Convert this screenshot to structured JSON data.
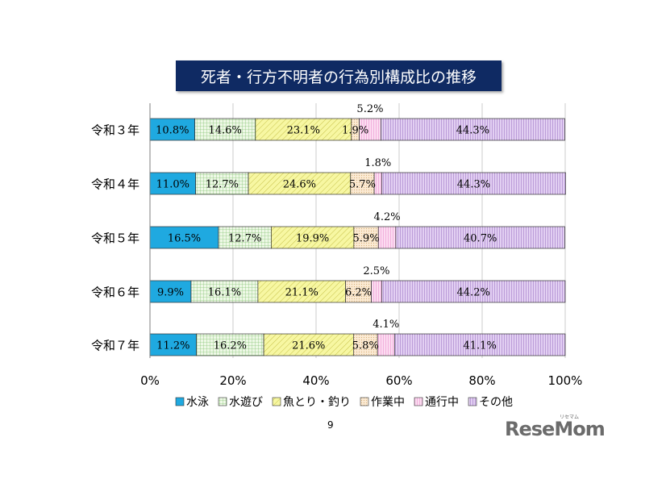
{
  "title": "死者・行方不明者の行為別構成比の推移",
  "page_number": "9",
  "watermark": "ReseMom",
  "watermark_sub": "リセマム",
  "colors": {
    "水泳": "#1fa9e0",
    "水遊び": "#e7f4de",
    "魚とり・釣り": "#f5f59a",
    "作業中": "#fbe8cf",
    "通行中": "#fbd6ef",
    "その他": "#dcc6ee"
  },
  "chart_data": {
    "type": "bar",
    "orientation": "horizontal-stacked-100",
    "title": "死者・行方不明者の行為別構成比の推移",
    "categories": [
      "令和３年",
      "令和４年",
      "令和５年",
      "令和６年",
      "令和７年"
    ],
    "series": [
      {
        "name": "水泳",
        "values": [
          10.8,
          11.0,
          16.5,
          9.9,
          11.2
        ],
        "labels": [
          "10.8%",
          "11.0%",
          "16.5%",
          "9.9%",
          "11.2%"
        ]
      },
      {
        "name": "水遊び",
        "values": [
          14.6,
          12.7,
          12.7,
          16.1,
          16.2
        ],
        "labels": [
          "14.6%",
          "12.7%",
          "12.7%",
          "16.1%",
          "16.2%"
        ]
      },
      {
        "name": "魚とり・釣り",
        "values": [
          23.1,
          24.6,
          19.9,
          21.1,
          21.6
        ],
        "labels": [
          "23.1%",
          "24.6%",
          "19.9%",
          "21.1%",
          "21.6%"
        ]
      },
      {
        "name": "作業中",
        "values": [
          1.9,
          5.7,
          5.9,
          6.2,
          5.8
        ],
        "labels": [
          "1.9%",
          "5.7%",
          "5.9%",
          "6.2%",
          "5.8%"
        ]
      },
      {
        "name": "通行中",
        "values": [
          5.2,
          1.8,
          4.2,
          2.5,
          4.1
        ],
        "labels": [
          "5.2%",
          "1.8%",
          "4.2%",
          "2.5%",
          "4.1%"
        ]
      },
      {
        "name": "その他",
        "values": [
          44.3,
          44.3,
          40.7,
          44.2,
          41.1
        ],
        "labels": [
          "44.3%",
          "44.3%",
          "40.7%",
          "44.2%",
          "41.1%"
        ]
      }
    ],
    "xlim": [
      0,
      100
    ],
    "xticks": [
      "0%",
      "20%",
      "40%",
      "60%",
      "80%",
      "100%"
    ],
    "legend_position": "bottom",
    "grid": "vertical"
  }
}
